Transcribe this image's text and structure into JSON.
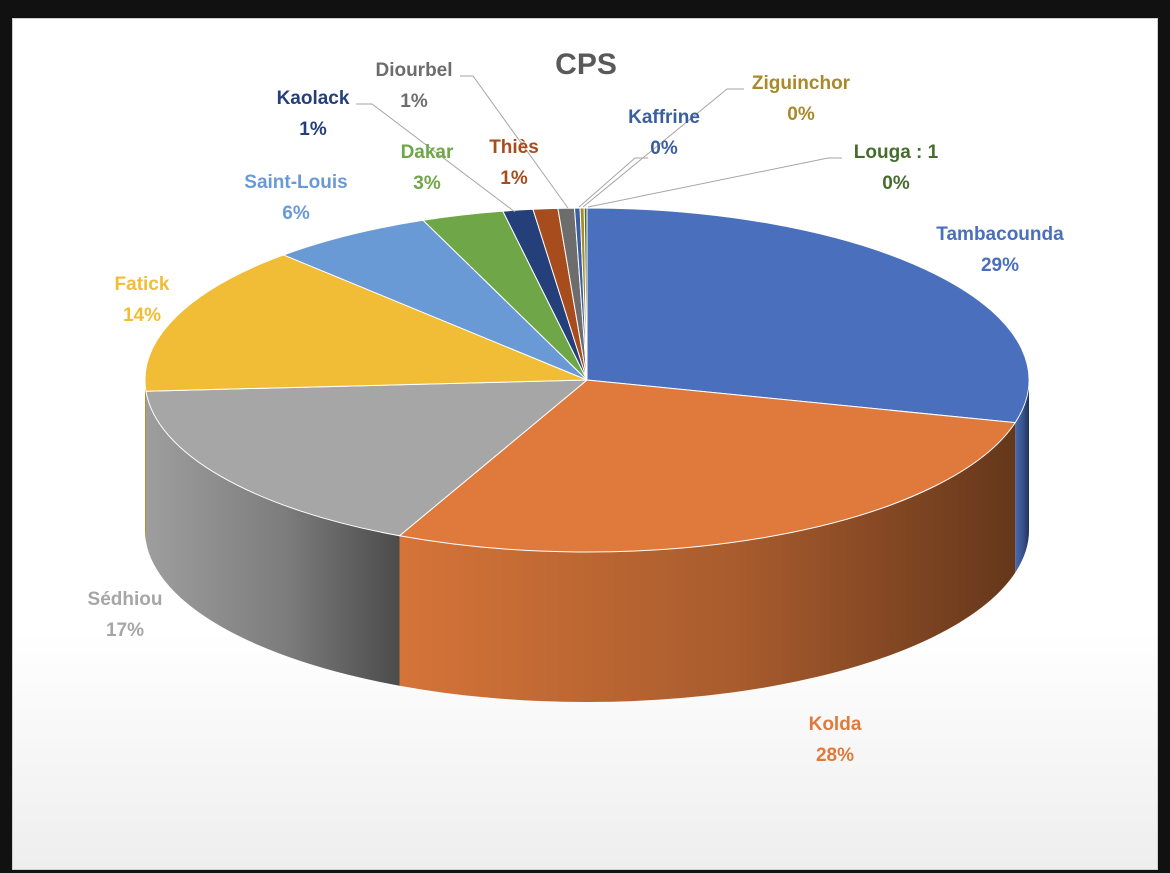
{
  "chart_data": {
    "type": "pie",
    "title": "CPS",
    "slices": [
      {
        "label": "Tambacounda",
        "percent_label": "29%",
        "value": 29,
        "color": "#4a6fbc"
      },
      {
        "label": "Kolda",
        "percent_label": "28%",
        "value": 28,
        "color": "#e07a3c"
      },
      {
        "label": "Sédhiou",
        "percent_label": "17%",
        "value": 17,
        "color": "#a6a6a6"
      },
      {
        "label": "Fatick",
        "percent_label": "14%",
        "value": 14,
        "color": "#f1bd37"
      },
      {
        "label": "Saint-Louis",
        "percent_label": "6%",
        "value": 6,
        "color": "#6a9ad5"
      },
      {
        "label": "Dakar",
        "percent_label": "3%",
        "value": 3,
        "color": "#6ea648"
      },
      {
        "label": "Kaolack",
        "percent_label": "1%",
        "value": 1.1,
        "color": "#243f7a"
      },
      {
        "label": "Thiès",
        "percent_label": "1%",
        "value": 0.9,
        "color": "#a74c1c"
      },
      {
        "label": "Diourbel",
        "percent_label": "1%",
        "value": 0.6,
        "color": "#6d6d6d"
      },
      {
        "label": "Kaffrine",
        "percent_label": "0%",
        "value": 0.2,
        "color": "#3a5e9e"
      },
      {
        "label": "Ziguinchor",
        "percent_label": "0%",
        "value": 0.15,
        "color": "#a88a2a"
      },
      {
        "label": "Louga : 1",
        "percent_label": "0%",
        "value": 0.1,
        "color": "#476d2e"
      }
    ],
    "label_colors": {
      "Tambacounda": "#4a6fbc",
      "Kolda": "#e07a3c",
      "Sédhiou": "#a6a6a6",
      "Fatick": "#f1bd37",
      "Saint-Louis": "#6a9ad5",
      "Dakar": "#6ea648",
      "Kaolack": "#243f7a",
      "Thiès": "#a74c1c",
      "Diourbel": "#6d6d6d",
      "Kaffrine": "#3a5e9e",
      "Ziguinchor": "#a88a2a",
      "Louga : 1": "#476d2e"
    }
  }
}
